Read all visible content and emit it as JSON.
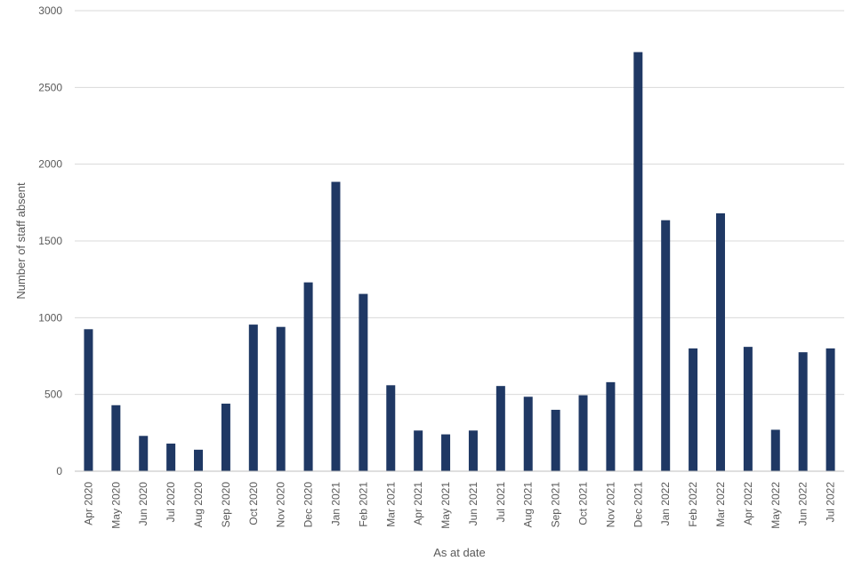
{
  "chart_data": {
    "type": "bar",
    "title": "",
    "xlabel": "As at date",
    "ylabel": "Number  of staff absent",
    "ylim": [
      0,
      3000
    ],
    "yticks": [
      "0",
      "500",
      "1000",
      "1500",
      "2000",
      "2500",
      "3000"
    ],
    "grid": true,
    "legend": "none",
    "bar_color": "#1f3864",
    "categories": [
      "Apr 2020",
      "May 2020",
      "Jun 2020",
      "Jul 2020",
      "Aug 2020",
      "Sep 2020",
      "Oct 2020",
      "Nov 2020",
      "Dec 2020",
      "Jan 2021",
      "Feb 2021",
      "Mar 2021",
      "Apr 2021",
      "May 2021",
      "Jun 2021",
      "Jul 2021",
      "Aug 2021",
      "Sep 2021",
      "Oct 2021",
      "Nov 2021",
      "Dec 2021",
      "Jan 2022",
      "Feb 2022",
      "Mar 2022",
      "Apr 2022",
      "May 2022",
      "Jun 2022",
      "Jul 2022"
    ],
    "values": [
      925,
      430,
      230,
      180,
      140,
      440,
      955,
      940,
      1230,
      1885,
      1155,
      560,
      265,
      240,
      265,
      555,
      485,
      400,
      495,
      580,
      2730,
      1635,
      800,
      1680,
      810,
      270,
      775,
      800
    ]
  }
}
